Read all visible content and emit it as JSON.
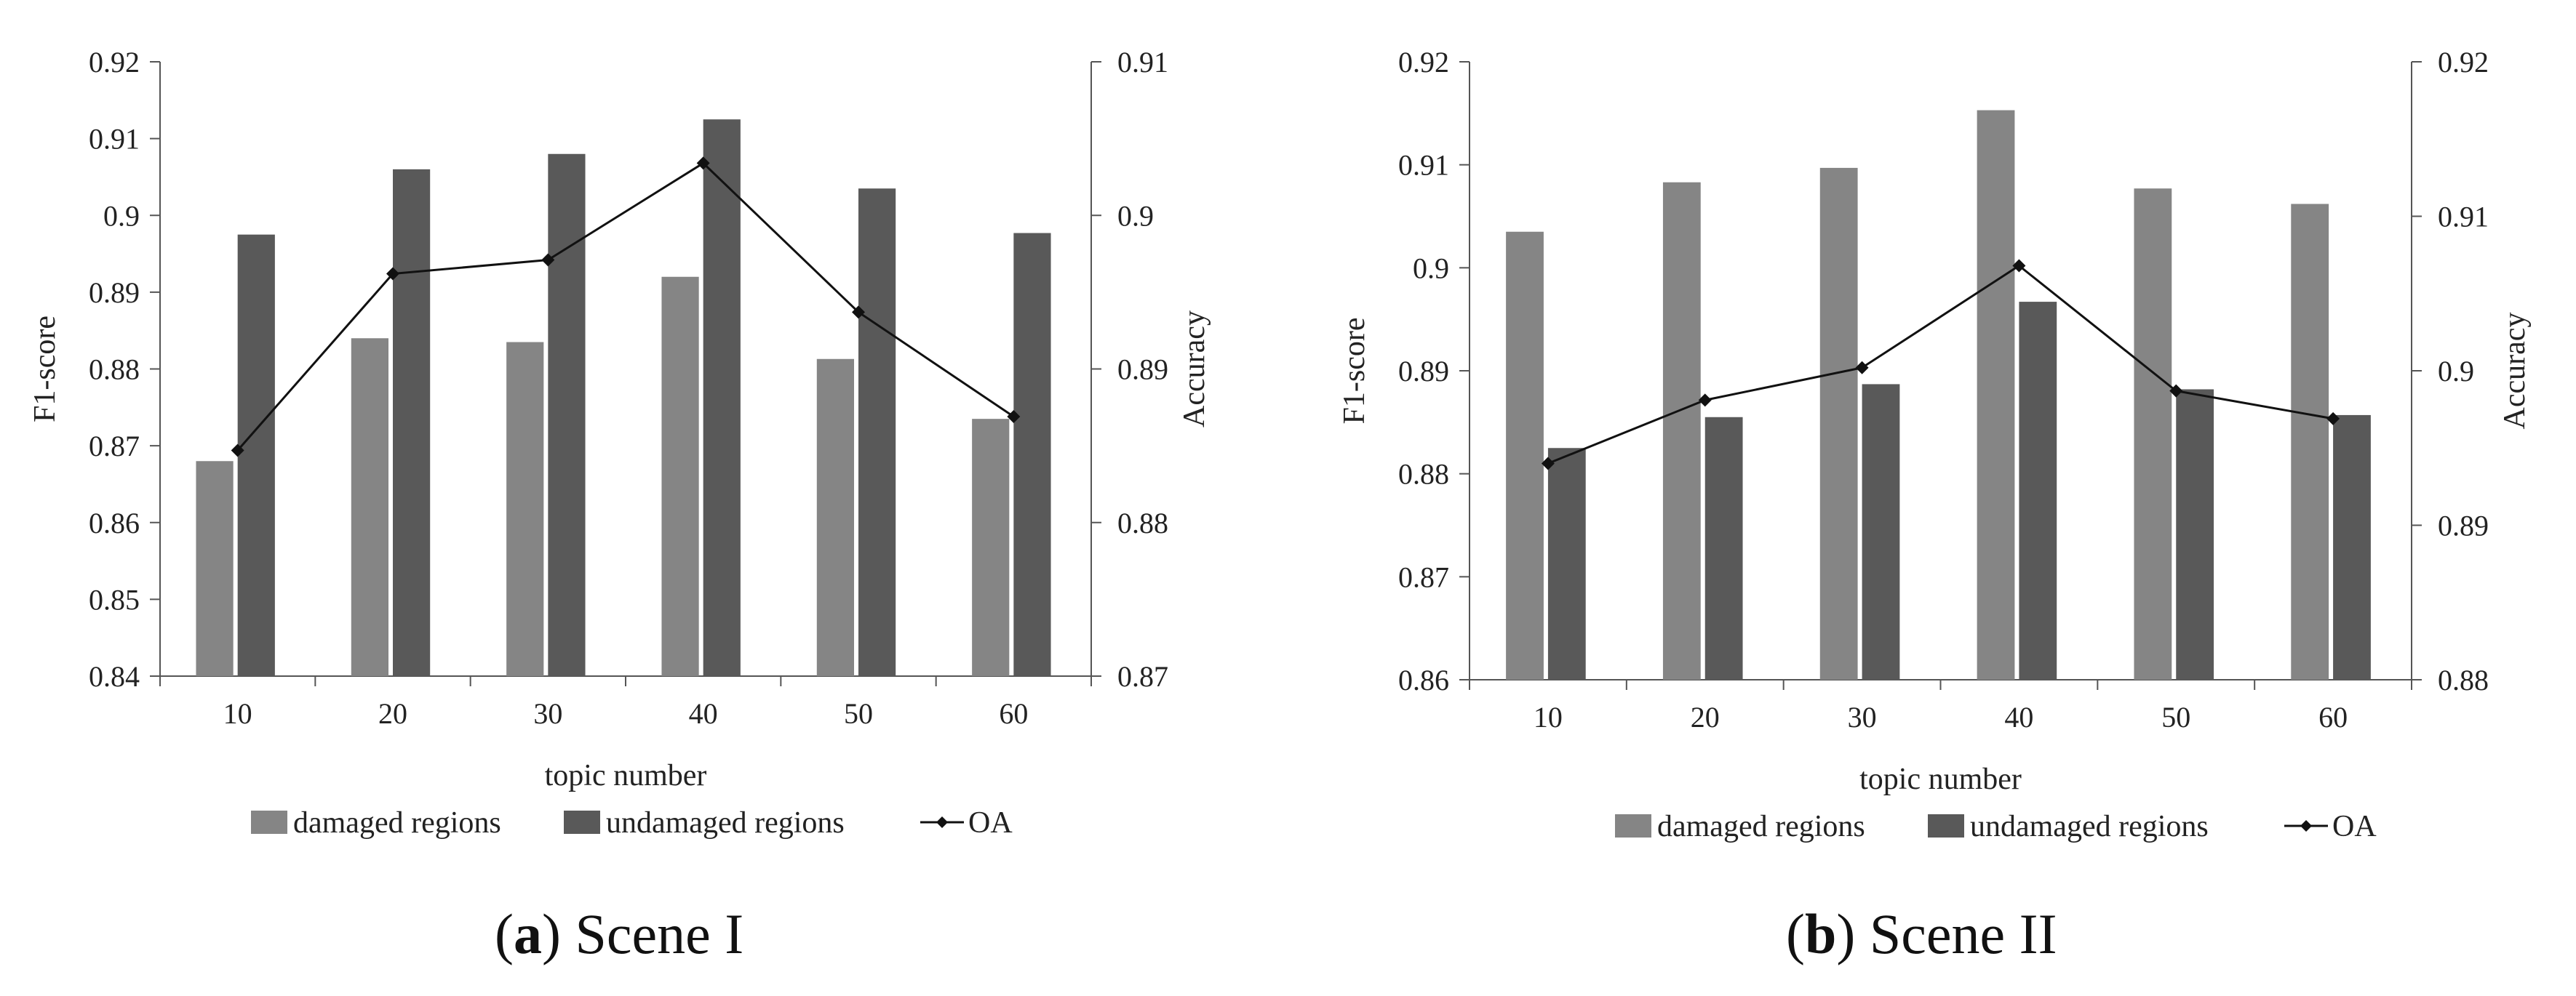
{
  "chart_data": [
    {
      "type": "bar",
      "caption": {
        "letter": "a",
        "text": "Scene I"
      },
      "categories": [
        "10",
        "20",
        "30",
        "40",
        "50",
        "60"
      ],
      "xlabel": "topic number",
      "ylabel": "F1-score",
      "ylim": [
        0.84,
        0.92
      ],
      "yticks": [
        "0.84",
        "0.85",
        "0.86",
        "0.87",
        "0.88",
        "0.89",
        "0.9",
        "0.91",
        "0.92"
      ],
      "y2label": "Accuracy",
      "y2lim": [
        0.87,
        0.91
      ],
      "y2ticks": [
        "0.87",
        "0.88",
        "0.89",
        "0.9",
        "0.91"
      ],
      "series": [
        {
          "name": "damaged regions",
          "kind": "bar",
          "axis": "left",
          "color": "#858585",
          "values": [
            0.868,
            0.884,
            0.8835,
            0.892,
            0.8813,
            0.8735
          ]
        },
        {
          "name": "undamaged regions",
          "kind": "bar",
          "axis": "left",
          "color": "#595959",
          "values": [
            0.8975,
            0.906,
            0.908,
            0.9125,
            0.9035,
            0.8977
          ]
        },
        {
          "name": "OA",
          "kind": "line",
          "axis": "right",
          "color": "#111111",
          "values": [
            0.8847,
            0.8962,
            0.8971,
            0.9034,
            0.8937,
            0.8869
          ]
        }
      ],
      "legend": [
        "damaged regions",
        "undamaged regions",
        "OA"
      ]
    },
    {
      "type": "bar",
      "caption": {
        "letter": "b",
        "text": "Scene II"
      },
      "categories": [
        "10",
        "20",
        "30",
        "40",
        "50",
        "60"
      ],
      "xlabel": "topic number",
      "ylabel": "F1-score",
      "ylim": [
        0.86,
        0.92
      ],
      "yticks": [
        "0.86",
        "0.87",
        "0.88",
        "0.89",
        "0.9",
        "0.91",
        "0.92"
      ],
      "y2label": "Accuracy",
      "y2lim": [
        0.88,
        0.92
      ],
      "y2ticks": [
        "0.88",
        "0.89",
        "0.9",
        "0.91",
        "0.92"
      ],
      "series": [
        {
          "name": "damaged regions",
          "kind": "bar",
          "axis": "left",
          "color": "#858585",
          "values": [
            0.9035,
            0.9083,
            0.9097,
            0.9153,
            0.9077,
            0.9062
          ]
        },
        {
          "name": "undamaged regions",
          "kind": "bar",
          "axis": "left",
          "color": "#595959",
          "values": [
            0.8825,
            0.8855,
            0.8887,
            0.8967,
            0.8882,
            0.8857
          ]
        },
        {
          "name": "OA",
          "kind": "line",
          "axis": "right",
          "color": "#111111",
          "values": [
            0.894,
            0.8981,
            0.9002,
            0.9068,
            0.8987,
            0.8969
          ]
        }
      ],
      "legend": [
        "damaged regions",
        "undamaged regions",
        "OA"
      ]
    }
  ]
}
